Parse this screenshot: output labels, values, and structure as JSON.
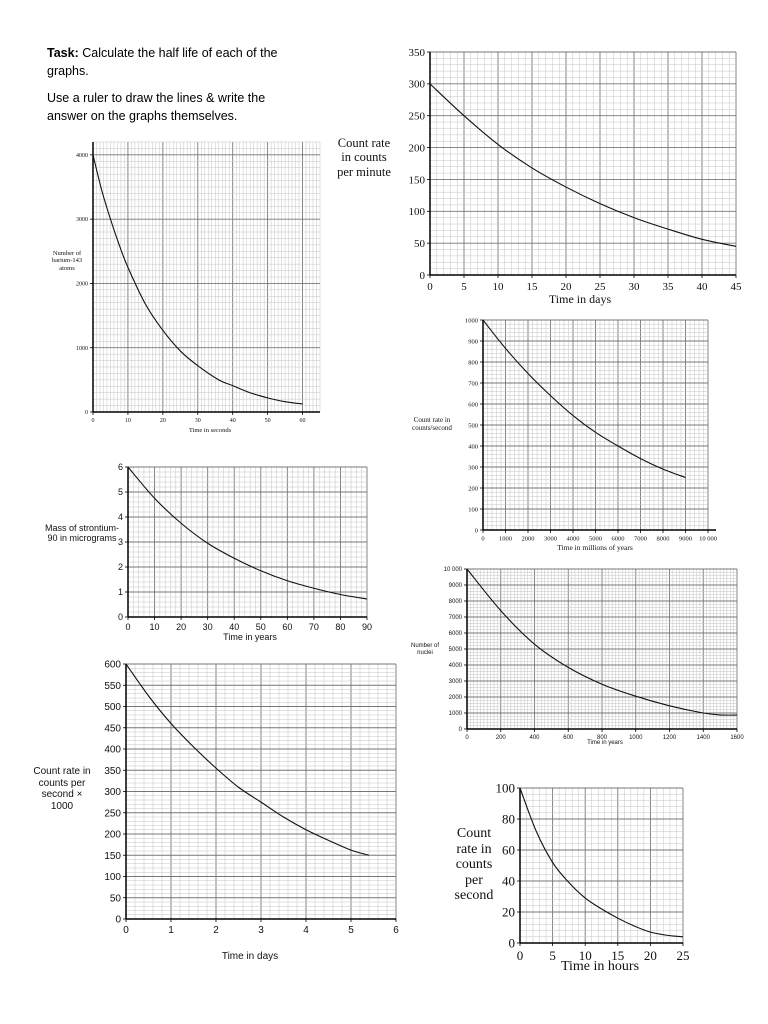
{
  "task": {
    "bold": "Task:",
    "line1": "Calculate the half life of each of the graphs.",
    "line2": "Use a ruler to draw the lines & write the answer on the graphs themselves."
  },
  "chart_data": [
    {
      "type": "line",
      "xlabel": "Time in seconds",
      "ylabel": "Number of barium-143 atoms",
      "xlim": [
        0,
        65
      ],
      "ylim": [
        0,
        4200
      ],
      "grid": true,
      "xtick_labels": [
        "0",
        "10",
        "20",
        "30",
        "40",
        "50",
        "60"
      ],
      "ytick_labels": [
        "0",
        "1000",
        "2000",
        "3000",
        "4000"
      ],
      "x": [
        0,
        2.5,
        5,
        7.5,
        10,
        15,
        20,
        25,
        30,
        36,
        40,
        45,
        50,
        55,
        60
      ],
      "y": [
        4000,
        3450,
        3000,
        2600,
        2250,
        1680,
        1270,
        950,
        720,
        500,
        410,
        300,
        220,
        160,
        125
      ]
    },
    {
      "type": "line",
      "xlabel": "Time in days",
      "ylabel": "Count rate in counts per minute",
      "xlim": [
        0,
        45
      ],
      "ylim": [
        0,
        350
      ],
      "grid": true,
      "xtick_labels": [
        "0",
        "5",
        "10",
        "15",
        "20",
        "25",
        "30",
        "35",
        "40",
        "45"
      ],
      "ytick_labels": [
        "0",
        "50",
        "100",
        "150",
        "200",
        "250",
        "300",
        "350"
      ],
      "x": [
        0,
        5,
        10,
        15,
        20,
        25,
        30,
        35,
        40,
        45
      ],
      "y": [
        300,
        250,
        205,
        168,
        138,
        112,
        90,
        72,
        56,
        45
      ]
    },
    {
      "type": "line",
      "xlabel": "Time in millions of years",
      "ylabel": "Count rate in counts/second",
      "xlim": [
        0,
        10000
      ],
      "ylim": [
        0,
        1000
      ],
      "grid": true,
      "xtick_labels": [
        "0",
        "1000",
        "2000",
        "3000",
        "4000",
        "5000",
        "6000",
        "7000",
        "8000",
        "9000",
        "10 000"
      ],
      "ytick_labels": [
        "0",
        "100",
        "200",
        "300",
        "400",
        "500",
        "600",
        "700",
        "800",
        "900",
        "1000"
      ],
      "x": [
        0,
        1000,
        2000,
        3000,
        4000,
        5000,
        6000,
        7000,
        8000,
        9000
      ],
      "y": [
        1000,
        865,
        745,
        640,
        545,
        465,
        400,
        340,
        290,
        250
      ]
    },
    {
      "type": "line",
      "xlabel": "Time in years",
      "ylabel": "Mass of strontium-90 in micrograms",
      "xlim": [
        0,
        90
      ],
      "ylim": [
        0,
        6
      ],
      "grid": true,
      "xtick_labels": [
        "0",
        "10",
        "20",
        "30",
        "40",
        "50",
        "60",
        "70",
        "80",
        "90"
      ],
      "ytick_labels": [
        "0",
        "1",
        "2",
        "3",
        "4",
        "5",
        "6"
      ],
      "x": [
        0,
        10,
        20,
        30,
        40,
        50,
        60,
        70,
        80,
        90
      ],
      "y": [
        6,
        4.75,
        3.75,
        2.95,
        2.35,
        1.85,
        1.45,
        1.15,
        0.9,
        0.72
      ]
    },
    {
      "type": "line",
      "xlabel": "Time in years",
      "ylabel": "Number of nuclei",
      "xlim": [
        0,
        1600
      ],
      "ylim": [
        0,
        10000
      ],
      "grid": true,
      "xtick_labels": [
        "0",
        "200",
        "400",
        "600",
        "800",
        "1000",
        "1200",
        "1400",
        "1600"
      ],
      "ytick_labels": [
        "0",
        "1000",
        "2000",
        "3000",
        "4000",
        "5000",
        "6000",
        "7000",
        "8000",
        "9000",
        "10 000"
      ],
      "x": [
        0,
        200,
        400,
        600,
        800,
        1000,
        1200,
        1400,
        1500,
        1600
      ],
      "y": [
        10000,
        7400,
        5300,
        3850,
        2800,
        2050,
        1450,
        1000,
        880,
        870
      ]
    },
    {
      "type": "line",
      "xlabel": "Time in days",
      "ylabel": "Count rate in counts per second × 1000",
      "xlim": [
        0,
        6
      ],
      "ylim": [
        0,
        600
      ],
      "grid": true,
      "xtick_labels": [
        "0",
        "1",
        "2",
        "3",
        "4",
        "5",
        "6"
      ],
      "ytick_labels": [
        "0",
        "50",
        "100",
        "150",
        "200",
        "250",
        "300",
        "350",
        "400",
        "450",
        "500",
        "550",
        "600"
      ],
      "x": [
        0,
        0.5,
        1,
        1.5,
        2,
        2.5,
        3,
        3.5,
        4,
        4.5,
        5,
        5.4
      ],
      "y": [
        600,
        525,
        460,
        405,
        355,
        310,
        275,
        240,
        210,
        185,
        162,
        150
      ]
    },
    {
      "type": "line",
      "xlabel": "Time in hours",
      "ylabel": "Count rate in counts per second",
      "xlim": [
        0,
        25
      ],
      "ylim": [
        0,
        100
      ],
      "grid": true,
      "xtick_labels": [
        "0",
        "5",
        "10",
        "15",
        "20",
        "25"
      ],
      "ytick_labels": [
        "0",
        "20",
        "40",
        "60",
        "80",
        "100"
      ],
      "x": [
        0,
        2.5,
        5,
        7.5,
        10,
        12.5,
        15,
        17.5,
        20,
        22.5,
        25
      ],
      "y": [
        100,
        72,
        52,
        39,
        29,
        22,
        16,
        11,
        7,
        5,
        4
      ]
    }
  ]
}
